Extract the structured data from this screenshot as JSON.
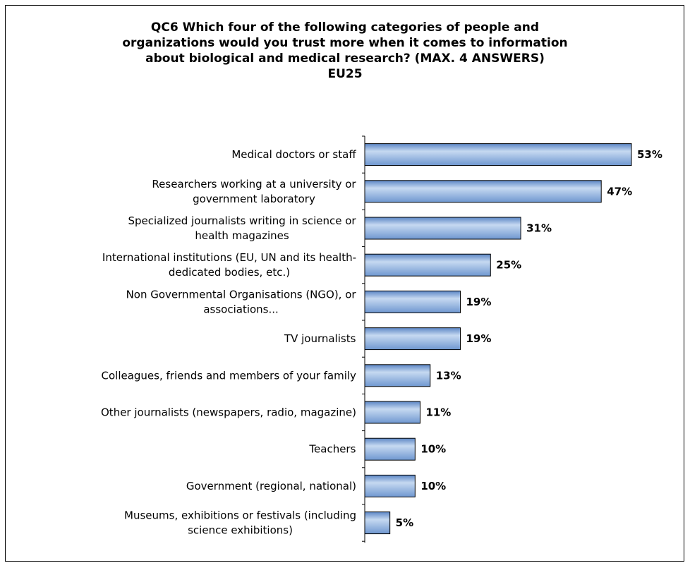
{
  "chart_data": {
    "type": "bar",
    "orientation": "horizontal",
    "title": [
      "QC6 Which four of the following categories of people and",
      "organizations would you trust more when it comes to information",
      "about biological and medical research? (MAX. 4 ANSWERS)",
      "EU25"
    ],
    "categories": [
      [
        "Medical doctors or staff"
      ],
      [
        "Researchers working at a university or",
        "government laboratory"
      ],
      [
        "Specialized journalists writing in science or",
        "health magazines"
      ],
      [
        "International institutions (EU, UN and its health-",
        "dedicated bodies, etc.)"
      ],
      [
        "Non Governmental Organisations (NGO), or",
        "associations..."
      ],
      [
        "TV journalists"
      ],
      [
        "Colleagues, friends and members of your family"
      ],
      [
        "Other journalists (newspapers, radio, magazine)"
      ],
      [
        "Teachers"
      ],
      [
        "Government (regional, national)"
      ],
      [
        "Museums, exhibitions or festivals (including",
        "science exhibitions)"
      ]
    ],
    "values": [
      53,
      47,
      31,
      25,
      19,
      19,
      13,
      11,
      10,
      10,
      5
    ],
    "value_labels": [
      "53%",
      "47%",
      "31%",
      "25%",
      "19%",
      "19%",
      "13%",
      "11%",
      "10%",
      "10%",
      "5%"
    ],
    "xlim": [
      0,
      53
    ],
    "grid": false,
    "legend": "none",
    "bar_color": "#8db3e2",
    "bar_color_light": "#c6d9f1",
    "bar_color_dark": "#5b86c5"
  }
}
